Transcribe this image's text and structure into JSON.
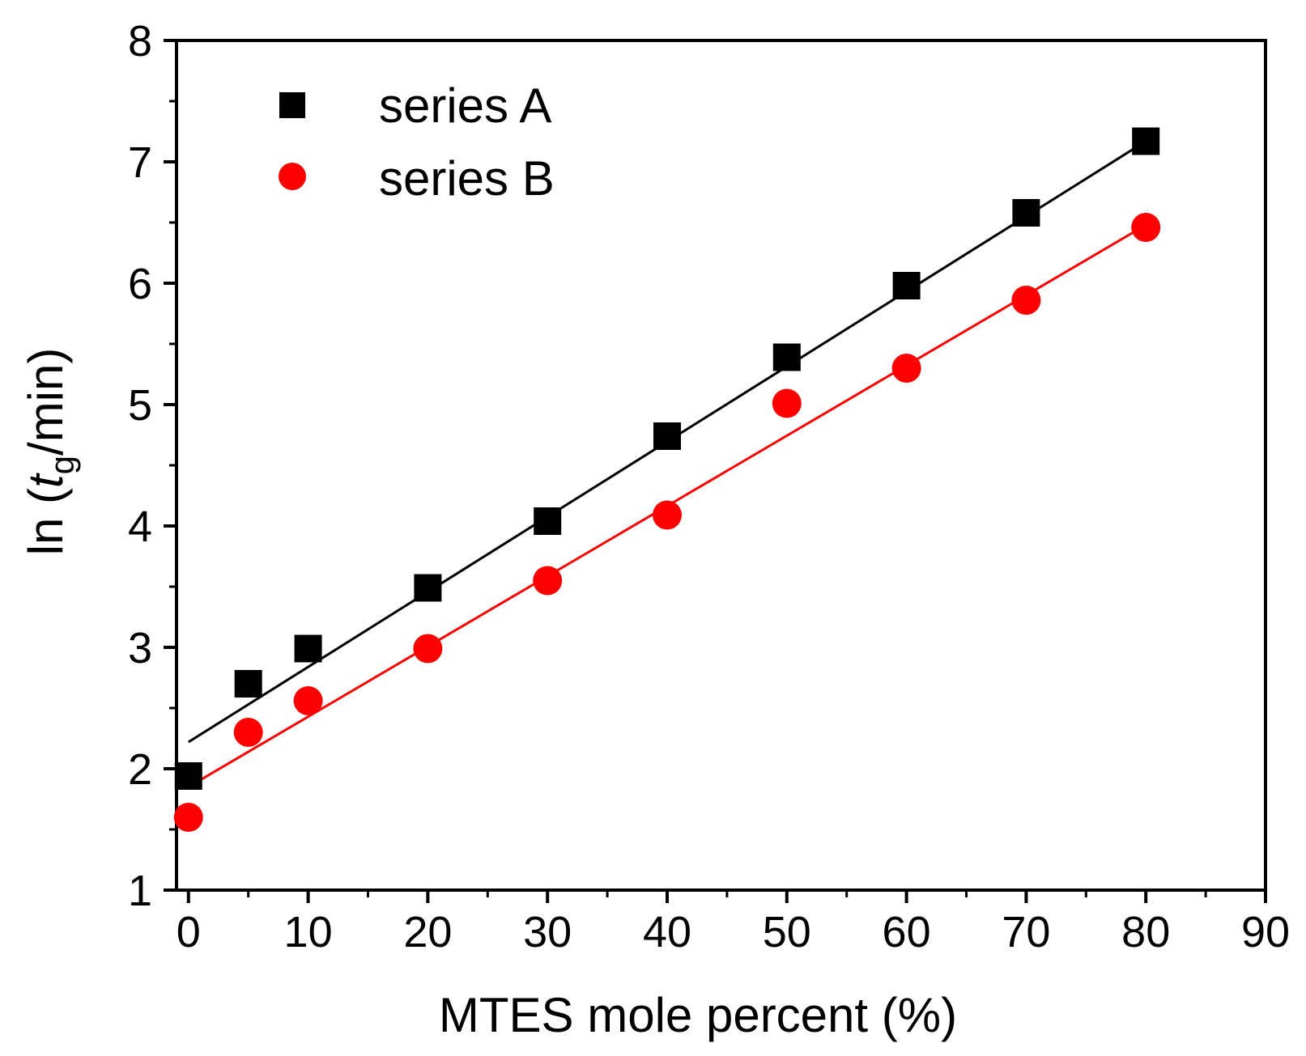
{
  "chart_data": {
    "type": "scatter",
    "title": "",
    "xlabel": "MTES mole percent (%)",
    "ylabel_parts": {
      "prefix": "ln (",
      "italic": "t",
      "subscript": "g",
      "suffix": "/min)"
    },
    "xlim": [
      -1,
      90
    ],
    "ylim": [
      1,
      8
    ],
    "x_ticks": [
      0,
      10,
      20,
      30,
      40,
      50,
      60,
      70,
      80,
      90
    ],
    "y_ticks": [
      1,
      2,
      3,
      4,
      5,
      6,
      7,
      8
    ],
    "x_tick_labels": [
      "0",
      "10",
      "20",
      "30",
      "40",
      "50",
      "60",
      "70",
      "80",
      "90"
    ],
    "y_tick_labels": [
      "1",
      "2",
      "3",
      "4",
      "5",
      "6",
      "7",
      "8"
    ],
    "legend_position": "top-left",
    "grid": false,
    "series": [
      {
        "name": "series A",
        "marker": "square",
        "color": "#000000",
        "x": [
          0,
          5,
          10,
          20,
          30,
          40,
          50,
          60,
          70,
          80
        ],
        "y": [
          1.94,
          2.7,
          2.99,
          3.49,
          4.04,
          4.74,
          5.39,
          5.98,
          6.58,
          7.17
        ],
        "fit": {
          "x": [
            0,
            80
          ],
          "y": [
            2.22,
            7.17
          ]
        }
      },
      {
        "name": "series B",
        "marker": "circle",
        "color": "#ff0000",
        "x": [
          0,
          5,
          10,
          20,
          30,
          40,
          50,
          60,
          70,
          80
        ],
        "y": [
          1.6,
          2.3,
          2.56,
          2.99,
          3.55,
          4.09,
          5.01,
          5.3,
          5.86,
          6.46
        ],
        "fit": {
          "x": [
            0,
            80
          ],
          "y": [
            1.85,
            6.48
          ]
        }
      }
    ]
  }
}
